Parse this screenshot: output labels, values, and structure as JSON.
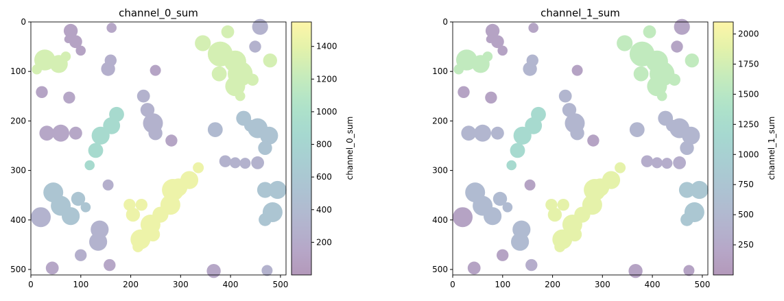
{
  "chart_data": [
    {
      "type": "heatmap",
      "title": "channel_0_sum",
      "xlim": [
        0,
        511
      ],
      "ylim": [
        511,
        0
      ],
      "x_ticks": [
        "0",
        "100",
        "200",
        "300",
        "400",
        "500"
      ],
      "y_ticks": [
        "0",
        "100",
        "200",
        "300",
        "400",
        "500"
      ],
      "colorbar": {
        "label": "channel_0_sum",
        "range": [
          0,
          1550
        ],
        "ticks": [
          "200",
          "400",
          "600",
          "800",
          "1000",
          "1200",
          "1400"
        ]
      },
      "colormap": "viridis",
      "colormap_alpha": 0.4,
      "regions": [
        {
          "id": 1,
          "value": 1300,
          "blobs": [
            [
              28,
              77,
              21
            ],
            [
              12,
              96,
              10
            ],
            [
              56,
              85,
              18
            ],
            [
              70,
              70,
              10
            ]
          ]
        },
        {
          "id": 2,
          "value": 110,
          "blobs": [
            [
              80,
              18,
              14
            ],
            [
              90,
              40,
              13
            ],
            [
              100,
              58,
              10
            ],
            [
              75,
              35,
              8
            ]
          ]
        },
        {
          "id": 3,
          "value": 150,
          "blobs": [
            [
              162,
              12,
              10
            ]
          ]
        },
        {
          "id": 4,
          "value": 1300,
          "blobs": [
            [
              345,
              43,
              16
            ],
            [
              380,
              65,
              25
            ],
            [
              410,
              80,
              22
            ],
            [
              420,
              105,
              25
            ],
            [
              410,
              130,
              20
            ],
            [
              420,
              150,
              10
            ],
            [
              395,
              20,
              13
            ],
            [
              445,
              117,
              12
            ],
            [
              480,
              78,
              14
            ],
            [
              378,
              105,
              15
            ]
          ]
        },
        {
          "id": 5,
          "value": 280,
          "blobs": [
            [
              460,
              10,
              16
            ],
            [
              450,
              50,
              12
            ]
          ]
        },
        {
          "id": 6,
          "value": 250,
          "blobs": [
            [
              155,
              95,
              14
            ],
            [
              160,
              78,
              12
            ]
          ]
        },
        {
          "id": 7,
          "value": 120,
          "blobs": [
            [
              250,
              98,
              11
            ]
          ]
        },
        {
          "id": 8,
          "value": 120,
          "blobs": [
            [
              22,
              142,
              12
            ]
          ]
        },
        {
          "id": 9,
          "value": 150,
          "blobs": [
            [
              77,
              153,
              12
            ]
          ]
        },
        {
          "id": 10,
          "value": 900,
          "blobs": [
            [
              172,
              187,
              15
            ],
            [
              162,
              210,
              17
            ],
            [
              140,
              230,
              18
            ],
            [
              130,
              260,
              15
            ],
            [
              118,
              290,
              10
            ]
          ]
        },
        {
          "id": 11,
          "value": 280,
          "blobs": [
            [
              226,
              150,
              13
            ],
            [
              234,
              178,
              14
            ],
            [
              245,
              205,
              20
            ],
            [
              250,
              225,
              14
            ]
          ]
        },
        {
          "id": 12,
          "value": 130,
          "blobs": [
            [
              282,
              240,
              12
            ]
          ]
        },
        {
          "id": 13,
          "value": 400,
          "blobs": [
            [
              370,
              218,
              15
            ]
          ]
        },
        {
          "id": 14,
          "value": 520,
          "blobs": [
            [
              427,
              195,
              15
            ],
            [
              455,
              215,
              20
            ],
            [
              478,
              230,
              18
            ],
            [
              470,
              255,
              14
            ],
            [
              440,
              210,
              12
            ]
          ]
        },
        {
          "id": 15,
          "value": 150,
          "blobs": [
            [
              32,
              225,
              15
            ],
            [
              60,
              225,
              17
            ],
            [
              90,
              225,
              13
            ]
          ]
        },
        {
          "id": 16,
          "value": 280,
          "blobs": [
            [
              390,
              282,
              12
            ],
            [
              410,
              285,
              11
            ],
            [
              430,
              286,
              11
            ],
            [
              455,
              285,
              13
            ]
          ]
        },
        {
          "id": 17,
          "value": 1450,
          "blobs": [
            [
              336,
              295,
              11
            ],
            [
              318,
              320,
              18
            ],
            [
              296,
              335,
              18
            ],
            [
              285,
              340,
              22
            ],
            [
              280,
              370,
              20
            ],
            [
              260,
              390,
              16
            ],
            [
              240,
              410,
              20
            ],
            [
              245,
              430,
              14
            ],
            [
              220,
              440,
              20
            ],
            [
              215,
              455,
              11
            ],
            [
              222,
              370,
              12
            ],
            [
              198,
              370,
              12
            ],
            [
              205,
              390,
              14
            ]
          ]
        },
        {
          "id": 18,
          "value": 250,
          "blobs": [
            [
              155,
              330,
              11
            ]
          ]
        },
        {
          "id": 19,
          "value": 550,
          "blobs": [
            [
              45,
              345,
              20
            ],
            [
              60,
              372,
              20
            ],
            [
              80,
              393,
              18
            ],
            [
              95,
              358,
              14
            ],
            [
              110,
              375,
              10
            ]
          ]
        },
        {
          "id": 20,
          "value": 550,
          "blobs": [
            [
              470,
              340,
              16
            ],
            [
              495,
              340,
              18
            ],
            [
              485,
              385,
              20
            ],
            [
              470,
              400,
              13
            ]
          ]
        },
        {
          "id": 21,
          "value": 300,
          "blobs": [
            [
              20,
              395,
              20
            ]
          ]
        },
        {
          "id": 22,
          "value": 300,
          "blobs": [
            [
              138,
              420,
              18
            ],
            [
              135,
              445,
              18
            ]
          ]
        },
        {
          "id": 23,
          "value": 250,
          "blobs": [
            [
              100,
              472,
              12
            ]
          ]
        },
        {
          "id": 24,
          "value": 150,
          "blobs": [
            [
              43,
              498,
              13
            ]
          ]
        },
        {
          "id": 25,
          "value": 150,
          "blobs": [
            [
              158,
              492,
              12
            ]
          ]
        },
        {
          "id": 26,
          "value": 150,
          "blobs": [
            [
              367,
              504,
              14
            ]
          ]
        },
        {
          "id": 27,
          "value": 280,
          "blobs": [
            [
              474,
              503,
              11
            ]
          ]
        }
      ]
    },
    {
      "type": "heatmap",
      "title": "channel_1_sum",
      "xlim": [
        0,
        511
      ],
      "ylim": [
        511,
        0
      ],
      "x_ticks": [
        "0",
        "100",
        "200",
        "300",
        "400",
        "500"
      ],
      "y_ticks": [
        "0",
        "100",
        "200",
        "300",
        "400",
        "500"
      ],
      "colorbar": {
        "label": "channel_1_sum",
        "range": [
          0,
          2100
        ],
        "ticks": [
          "250",
          "500",
          "750",
          "1000",
          "1250",
          "1500",
          "1750",
          "2000"
        ]
      },
      "colormap": "viridis",
      "colormap_alpha": 0.4,
      "region_values": [
        1600,
        150,
        170,
        1600,
        170,
        450,
        150,
        150,
        150,
        1200,
        450,
        150,
        450,
        450,
        450,
        300,
        1900,
        150,
        550,
        800,
        150,
        550,
        150,
        150,
        300,
        150,
        150
      ]
    }
  ]
}
